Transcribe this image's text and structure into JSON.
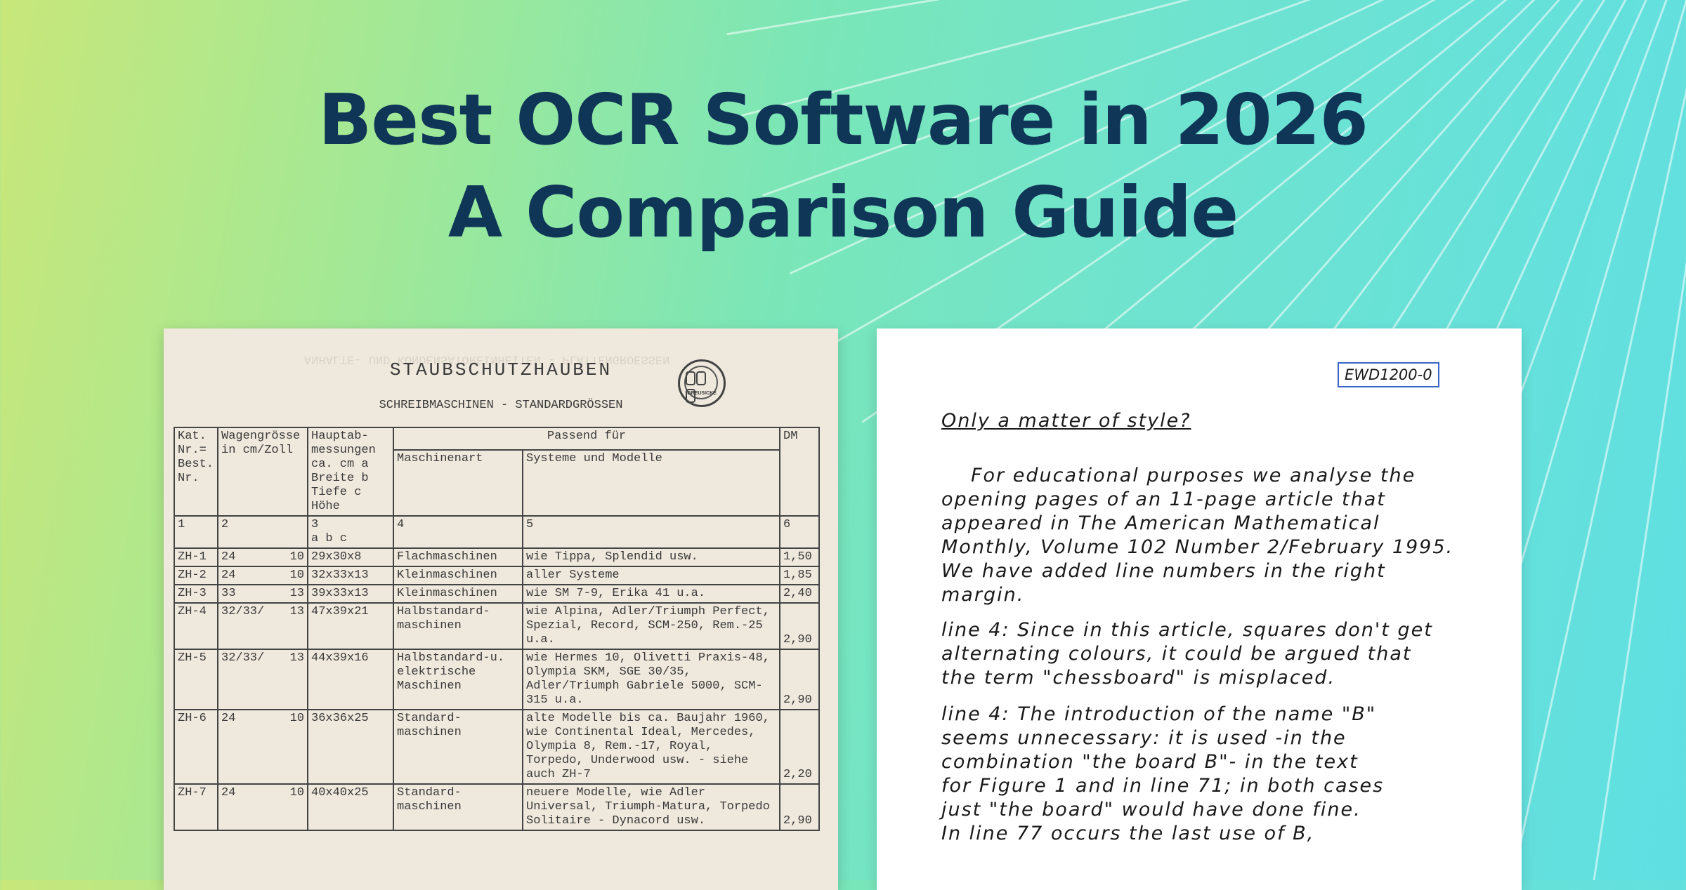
{
  "title": {
    "line1": "Best OCR Software in 2026",
    "line2": "A Comparison Guide"
  },
  "colors": {
    "title": "#0f3557",
    "bg_left": "#c8e77a",
    "bg_right": "#5fdfe3",
    "ewd_border": "#3c64c8"
  },
  "left_doc": {
    "heading": "STAUBSCHUTZHAUBEN",
    "subheading": "SCHREIBMASCHINEN - STANDARDGRÖSSEN",
    "seal_text": "GREUSICKE",
    "columns": {
      "kat": "Kat. Nr.= Best. Nr.",
      "wagen": "Wagengrösse in cm/Zoll",
      "haupt": "Hauptab- messungen ca. cm a Breite b Tiefe c Höhe",
      "passend": "Passend für",
      "maschinenart": "Maschinenart",
      "systeme": "Systeme und Modelle",
      "dm": "DM"
    },
    "col_numbers": [
      "1",
      "2",
      "3",
      "4",
      "5",
      "6"
    ],
    "abc": "a b c",
    "rows": [
      {
        "kat": "ZH-1",
        "w1": "24",
        "w2": "10",
        "dims": "29x30x8",
        "art": "Flachmaschinen",
        "modelle": "wie Tippa, Splendid usw.",
        "dm": "1,50"
      },
      {
        "kat": "ZH-2",
        "w1": "24",
        "w2": "10",
        "dims": "32x33x13",
        "art": "Kleinmaschinen",
        "modelle": "aller Systeme",
        "dm": "1,85"
      },
      {
        "kat": "ZH-3",
        "w1": "33",
        "w2": "13",
        "dims": "39x33x13",
        "art": "Kleinmaschinen",
        "modelle": "wie SM 7-9, Erika 41 u.a.",
        "dm": "2,40"
      },
      {
        "kat": "ZH-4",
        "w1": "32/33/",
        "w2": "13",
        "dims": "47x39x21",
        "art": "Halbstandard- maschinen",
        "modelle": "wie Alpina, Adler/Triumph Perfect, Spezial, Record, SCM-250, Rem.-25 u.a.",
        "dm": "2,90"
      },
      {
        "kat": "ZH-5",
        "w1": "32/33/",
        "w2": "13",
        "dims": "44x39x16",
        "art": "Halbstandard-u. elektrische Maschinen",
        "modelle": "wie Hermes 10, Olivetti Praxis-48, Olympia SKM, SGE 30/35, Adler/Triumph Gabriele 5000, SCM-315 u.a.",
        "dm": "2,90"
      },
      {
        "kat": "ZH-6",
        "w1": "24",
        "w2": "10",
        "dims": "36x36x25",
        "art": "Standard- maschinen",
        "modelle": "alte Modelle bis ca. Baujahr 1960, wie Continental Ideal, Mercedes, Olympia 8, Rem.-17, Royal, Torpedo, Underwood usw. - siehe auch ZH-7",
        "dm": "2,20"
      },
      {
        "kat": "ZH-7",
        "w1": "24",
        "w2": "10",
        "dims": "40x40x25",
        "art": "Standard- maschinen",
        "modelle": "neuere Modelle, wie Adler Universal, Triumph-Matura, Torpedo Solitaire - Dynacord usw.",
        "dm": "2,90"
      }
    ]
  },
  "right_doc": {
    "label": "EWD1200-0",
    "heading": "Only a matter of style?",
    "lines": [
      "For educational purposes we analyse the",
      "opening pages of an 11-page article that",
      "appeared in The American Mathematical",
      "Monthly, Volume 102 Number 2/February 1995.",
      "We have added line numbers in the right",
      "margin.",
      "line 4: Since in this article, squares don't get",
      "alternating colours, it could be argued that",
      "the term \"chessboard\" is misplaced.",
      "line 4: The introduction of the name \"B\"",
      "seems unnecessary: it is used -in the",
      "combination \"the board B\"- in the text",
      "for Figure 1 and in line 71; in both cases",
      "just \"the board\" would have done fine.",
      "In line 77 occurs the last use of B,"
    ]
  }
}
